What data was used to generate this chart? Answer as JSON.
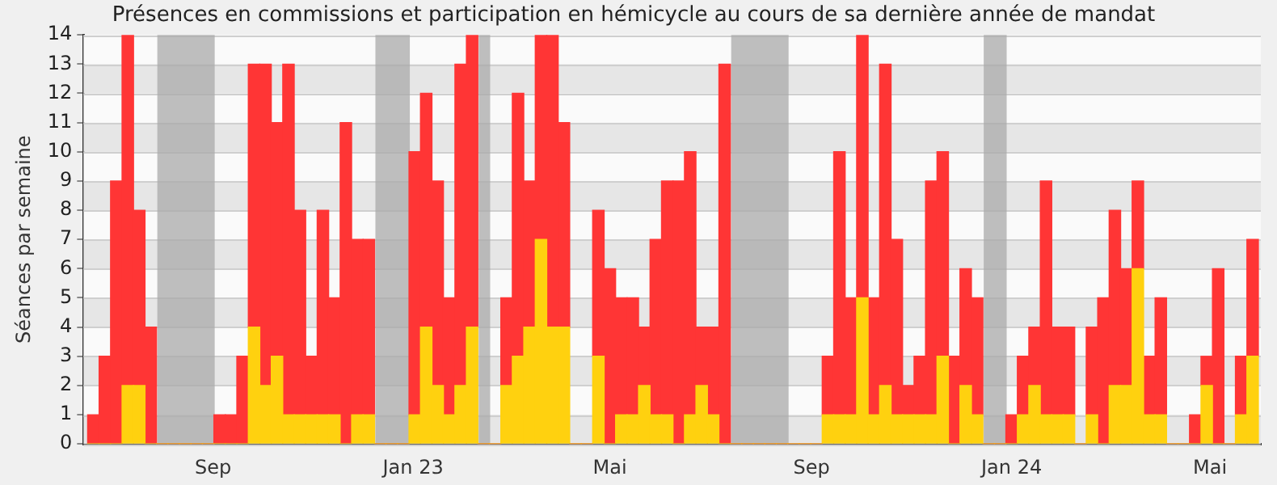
{
  "chart_data": {
    "type": "bar",
    "title": "Présences en commissions et participation en hémicycle au cours de sa dernière année de mandat",
    "ylabel": "Séances par semaine",
    "x": [
      "2022-06-20",
      "2022-06-27",
      "2022-07-04",
      "2022-07-11",
      "2022-07-18",
      "2022-07-25",
      "2022-08-01",
      "2022-08-08",
      "2022-08-15",
      "2022-08-22",
      "2022-08-29",
      "2022-09-05",
      "2022-09-12",
      "2022-09-19",
      "2022-09-26",
      "2022-10-03",
      "2022-10-10",
      "2022-10-17",
      "2022-10-24",
      "2022-10-31",
      "2022-11-07",
      "2022-11-14",
      "2022-11-21",
      "2022-11-28",
      "2022-12-05",
      "2022-12-12",
      "2022-12-19",
      "2022-12-26",
      "2023-01-02",
      "2023-01-09",
      "2023-01-16",
      "2023-01-23",
      "2023-01-30",
      "2023-02-06",
      "2023-02-13",
      "2023-02-20",
      "2023-02-27",
      "2023-03-06",
      "2023-03-13",
      "2023-03-20",
      "2023-03-27",
      "2023-04-03",
      "2023-04-10",
      "2023-04-17",
      "2023-04-24",
      "2023-05-01",
      "2023-05-08",
      "2023-05-15",
      "2023-05-22",
      "2023-05-29",
      "2023-06-05",
      "2023-06-12",
      "2023-06-19",
      "2023-06-26",
      "2023-07-03",
      "2023-07-10",
      "2023-07-17",
      "2023-07-24",
      "2023-07-31",
      "2023-08-07",
      "2023-08-14",
      "2023-08-21",
      "2023-08-28",
      "2023-09-04",
      "2023-09-11",
      "2023-09-18",
      "2023-09-25",
      "2023-10-02",
      "2023-10-09",
      "2023-10-16",
      "2023-10-23",
      "2023-10-30",
      "2023-11-06",
      "2023-11-13",
      "2023-11-20",
      "2023-11-27",
      "2023-12-04",
      "2023-12-11",
      "2023-12-18",
      "2023-12-25",
      "2024-01-01",
      "2024-01-08",
      "2024-01-15",
      "2024-01-22",
      "2024-01-29",
      "2024-02-05",
      "2024-02-12",
      "2024-02-19",
      "2024-02-26",
      "2024-03-04",
      "2024-03-11",
      "2024-03-18",
      "2024-03-25",
      "2024-04-01",
      "2024-04-08",
      "2024-04-15",
      "2024-04-22",
      "2024-04-29",
      "2024-05-06",
      "2024-05-13",
      "2024-05-20",
      "2024-05-27"
    ],
    "series": [
      {
        "color": "#ffd10f",
        "values": [
          0,
          0,
          0,
          2,
          2,
          0,
          0,
          0,
          0,
          0,
          0,
          0,
          0,
          0,
          4,
          2,
          3,
          1,
          1,
          1,
          1,
          1,
          0,
          1,
          1,
          0,
          0,
          0,
          1,
          4,
          2,
          1,
          2,
          4,
          0,
          0,
          2,
          3,
          4,
          7,
          4,
          4,
          0,
          0,
          3,
          0,
          1,
          1,
          2,
          1,
          1,
          0,
          1,
          2,
          1,
          0,
          0,
          0,
          0,
          0,
          0,
          0,
          0,
          0,
          1,
          1,
          1,
          5,
          1,
          2,
          1,
          1,
          1,
          1,
          3,
          0,
          2,
          1,
          0,
          0,
          0,
          1,
          2,
          1,
          1,
          1,
          0,
          1,
          0,
          2,
          2,
          6,
          1,
          1,
          0,
          0,
          0,
          2,
          0,
          0,
          1,
          3
        ]
      },
      {
        "color": "#ff3535",
        "values": [
          1,
          3,
          9,
          12,
          6,
          4,
          0,
          0,
          0,
          0,
          0,
          1,
          1,
          3,
          9,
          11,
          8,
          12,
          7,
          2,
          7,
          4,
          11,
          6,
          6,
          0,
          0,
          0,
          9,
          8,
          7,
          4,
          11,
          10,
          0,
          0,
          3,
          9,
          5,
          7,
          10,
          7,
          0,
          0,
          5,
          6,
          4,
          4,
          2,
          6,
          8,
          9,
          9,
          2,
          3,
          13,
          0,
          0,
          0,
          0,
          0,
          0,
          0,
          0,
          2,
          9,
          4,
          9,
          4,
          11,
          6,
          1,
          2,
          8,
          7,
          3,
          4,
          4,
          0,
          0,
          1,
          2,
          2,
          8,
          3,
          3,
          0,
          3,
          5,
          6,
          4,
          3,
          2,
          4,
          0,
          0,
          1,
          1,
          6,
          0,
          2,
          4
        ]
      }
    ],
    "stacked": true,
    "xlim": [
      "2022-06-14",
      "2024-06-01"
    ],
    "xticks": [
      {
        "value": "2022-09-01",
        "label": "Sep"
      },
      {
        "value": "2023-01-01",
        "label": "Jan 23"
      },
      {
        "value": "2023-05-01",
        "label": "Mai"
      },
      {
        "value": "2023-09-01",
        "label": "Sep"
      },
      {
        "value": "2024-01-01",
        "label": "Jan 24"
      },
      {
        "value": "2024-05-01",
        "label": "Mai"
      }
    ],
    "ylim": [
      0,
      14
    ],
    "yticks": [
      0,
      1,
      2,
      3,
      4,
      5,
      6,
      7,
      8,
      9,
      10,
      11,
      12,
      13,
      14
    ],
    "bands": [
      {
        "axis": "x",
        "from": "2022-07-29",
        "to": "2022-09-02",
        "color": "#aaaaaa"
      },
      {
        "axis": "x",
        "from": "2022-12-09",
        "to": "2022-12-30",
        "color": "#aaaaaa"
      },
      {
        "axis": "x",
        "from": "2023-02-10",
        "to": "2023-02-17",
        "color": "#aaaaaa"
      },
      {
        "axis": "x",
        "from": "2023-07-14",
        "to": "2023-08-18",
        "color": "#aaaaaa"
      },
      {
        "axis": "x",
        "from": "2023-12-15",
        "to": "2023-12-29",
        "color": "#aaaaaa"
      }
    ],
    "grid": "y",
    "legend": false
  }
}
